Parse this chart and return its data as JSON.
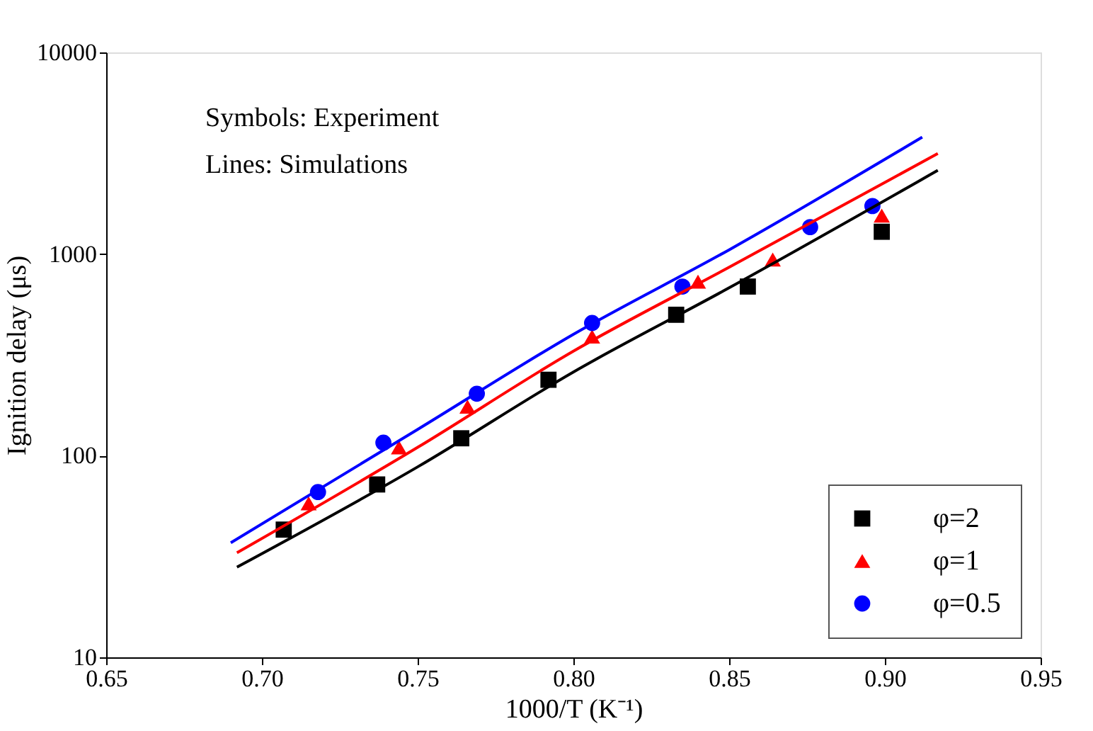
{
  "chart_data": {
    "type": "scatter",
    "xlabel": "1000/T (K⁻¹)",
    "ylabel": "Ignition delay (μs)",
    "annotations": [
      "Symbols: Experiment",
      "Lines: Simulations"
    ],
    "xlim": [
      0.65,
      0.95
    ],
    "ylim": [
      10,
      10000
    ],
    "log": "y",
    "xticks": [
      {
        "value": 0.65,
        "label": "0.65"
      },
      {
        "value": 0.7,
        "label": "0.70"
      },
      {
        "value": 0.75,
        "label": "0.75"
      },
      {
        "value": 0.8,
        "label": "0.80"
      },
      {
        "value": 0.85,
        "label": "0.85"
      },
      {
        "value": 0.9,
        "label": "0.90"
      },
      {
        "value": 0.95,
        "label": "0.95"
      }
    ],
    "yticks": [
      10,
      100,
      1000,
      10000
    ],
    "grid": false,
    "legend": "bottom right",
    "series": [
      {
        "name": "φ=2",
        "type": "scatter",
        "marker": "square",
        "color": "#000000",
        "x": [
          0.707,
          0.737,
          0.764,
          0.792,
          0.833,
          0.856,
          0.899
        ],
        "values": [
          43,
          72,
          122,
          238,
          500,
          690,
          1290
        ]
      },
      {
        "name": "φ=1",
        "type": "scatter",
        "marker": "triangle",
        "color": "#ff0000",
        "x": [
          0.715,
          0.744,
          0.766,
          0.806,
          0.84,
          0.864,
          0.899
        ],
        "values": [
          58,
          110,
          175,
          390,
          730,
          940,
          1550
        ]
      },
      {
        "name": "φ=0.5",
        "type": "scatter",
        "marker": "circle",
        "color": "#0000ff",
        "x": [
          0.718,
          0.739,
          0.769,
          0.806,
          0.835,
          0.876,
          0.896
        ],
        "values": [
          66,
          116,
          203,
          455,
          690,
          1360,
          1730
        ]
      },
      {
        "type": "line",
        "color": "#000000",
        "x": [
          0.692,
          0.75,
          0.8,
          0.85,
          0.917
        ],
        "values": [
          28,
          88,
          260,
          680,
          2600
        ]
      },
      {
        "type": "line",
        "color": "#ff0000",
        "x": [
          0.692,
          0.75,
          0.8,
          0.85,
          0.917
        ],
        "values": [
          33,
          110,
          330,
          860,
          3150
        ]
      },
      {
        "type": "line",
        "color": "#0000ff",
        "x": [
          0.69,
          0.75,
          0.8,
          0.85,
          0.912
        ],
        "values": [
          37,
          135,
          400,
          1050,
          3800
        ]
      }
    ]
  }
}
